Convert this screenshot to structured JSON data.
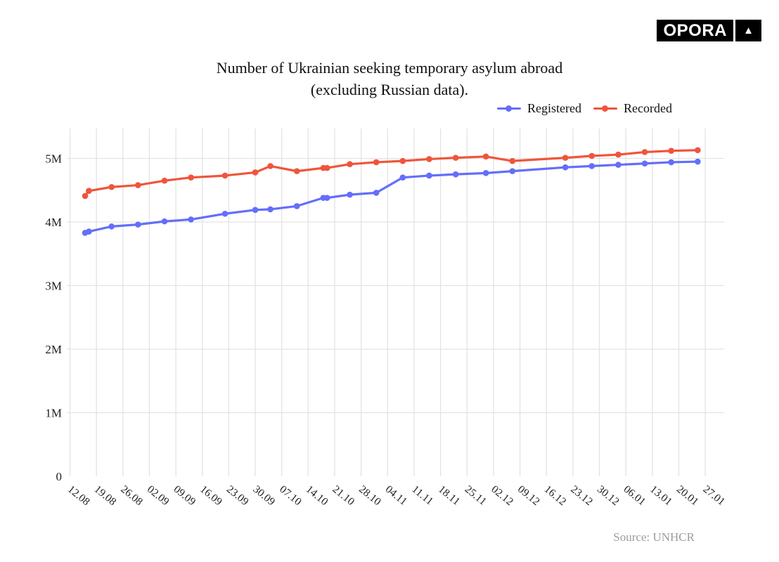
{
  "logo": {
    "text": "OPORA",
    "triangle_symbol": "▲"
  },
  "title": {
    "line1": "Number of Ukrainian seeking temporary asylum abroad",
    "line2": "(excluding Russian data)."
  },
  "source_note": "Source: UNHCR",
  "colors": {
    "registered": "#636EFA",
    "recorded": "#EF553B",
    "grid": "#e3e3e3",
    "axis_text": "#1f1f1f",
    "title_text": "#111111",
    "source_text": "#9c9c9c",
    "logo_bg": "#000000",
    "logo_fg": "#ffffff",
    "background": "#ffffff"
  },
  "chart_data": {
    "type": "line",
    "title": "Number of Ukrainian seeking temporary asylum abroad (excluding Russian data).",
    "legend_position": "top-right",
    "grid": true,
    "source": "Source: UNHCR",
    "x_axis": {
      "tick_labels": [
        "12.08",
        "19.08",
        "26.08",
        "02.09",
        "09.09",
        "16.09",
        "23.09",
        "30.09",
        "07.10",
        "14.10",
        "21.10",
        "28.10",
        "04.11",
        "11.11",
        "18.11",
        "25.11",
        "02.12",
        "09.12",
        "16.12",
        "23.12",
        "30.12",
        "06.01",
        "13.01",
        "20.01",
        "27.01"
      ],
      "tick_day_offsets": [
        0,
        7,
        14,
        21,
        28,
        35,
        42,
        49,
        56,
        63,
        70,
        77,
        84,
        91,
        98,
        105,
        112,
        119,
        126,
        133,
        140,
        147,
        154,
        161,
        168
      ],
      "lim_days": [
        -0.84,
        173
      ]
    },
    "y_axis": {
      "tick_labels": [
        "0",
        "1M",
        "2M",
        "3M",
        "4M",
        "5M"
      ],
      "tick_values_millions": [
        0,
        1,
        2,
        3,
        4,
        5
      ],
      "lim_millions": [
        0,
        5.47
      ]
    },
    "series": [
      {
        "name": "Registered",
        "color": "#636EFA",
        "x_day_offsets_from_12_08": [
          4,
          5,
          11,
          18,
          25,
          32,
          41,
          49,
          53,
          60,
          67,
          68,
          74,
          81,
          88,
          95,
          102,
          110,
          117,
          131,
          138,
          145,
          152,
          159,
          166
        ],
        "values_millions": [
          3.83,
          3.85,
          3.93,
          3.96,
          4.01,
          4.04,
          4.13,
          4.19,
          4.2,
          4.25,
          4.38,
          4.38,
          4.43,
          4.46,
          4.7,
          4.73,
          4.75,
          4.77,
          4.8,
          4.86,
          4.88,
          4.9,
          4.92,
          4.94,
          4.95
        ]
      },
      {
        "name": "Recorded",
        "color": "#EF553B",
        "x_day_offsets_from_12_08": [
          4,
          5,
          11,
          18,
          25,
          32,
          41,
          49,
          53,
          60,
          67,
          68,
          74,
          81,
          88,
          95,
          102,
          110,
          117,
          131,
          138,
          145,
          152,
          159,
          166
        ],
        "values_millions": [
          4.41,
          4.49,
          4.55,
          4.58,
          4.65,
          4.7,
          4.73,
          4.78,
          4.88,
          4.8,
          4.85,
          4.85,
          4.91,
          4.94,
          4.96,
          4.99,
          5.01,
          5.03,
          4.96,
          5.01,
          5.04,
          5.06,
          5.1,
          5.12,
          5.13
        ]
      }
    ]
  }
}
